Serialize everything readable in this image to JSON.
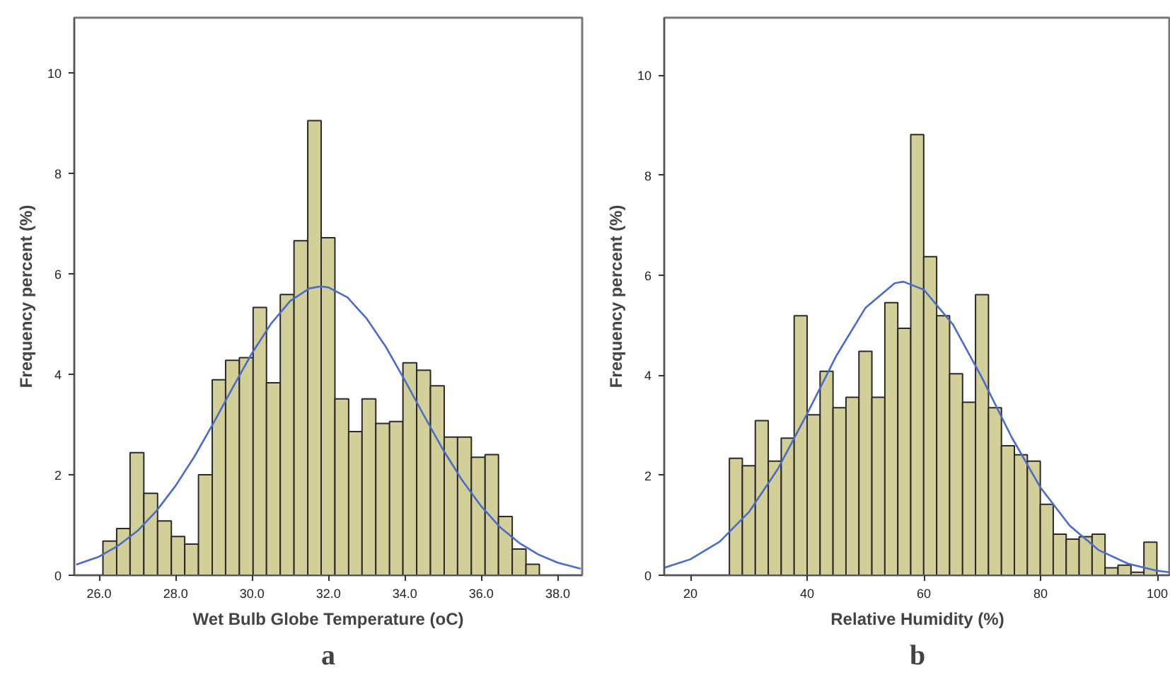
{
  "chart_data": [
    {
      "type": "histogram",
      "xlabel": "Wet Bulb Globe Temperature (oC)",
      "ylabel": "Frequency percent (%)",
      "annotations": [
        "a"
      ],
      "color": "#d3cf98",
      "bins": [
        26.1,
        26.46,
        26.81,
        27.17,
        27.53,
        27.89,
        28.24,
        28.6,
        28.96,
        29.31,
        29.67,
        30.03,
        30.38,
        30.74,
        31.1,
        31.46,
        31.81,
        32.17,
        32.53,
        32.88,
        33.24,
        33.6,
        33.95,
        34.31,
        34.67,
        35.03,
        35.38,
        35.74,
        36.1,
        36.45,
        36.81,
        37.17,
        37.52
      ],
      "values": [
        0.68,
        0.93,
        2.44,
        1.63,
        1.08,
        0.77,
        0.62,
        2.0,
        3.89,
        4.28,
        4.33,
        5.33,
        3.83,
        5.59,
        6.66,
        9.05,
        6.72,
        3.51,
        2.86,
        3.51,
        3.02,
        3.06,
        4.23,
        4.08,
        3.77,
        2.75,
        2.75,
        2.35,
        2.4,
        1.17,
        0.52,
        0.22
      ],
      "series": [
        {
          "type": "line",
          "color": "#4b6bc8",
          "x": [
            25.4,
            26,
            26.5,
            27,
            27.5,
            28,
            28.5,
            29,
            29.5,
            30,
            30.5,
            31,
            31.5,
            31.8,
            32,
            32.5,
            33,
            33.5,
            34,
            34.5,
            35,
            35.5,
            36,
            36.5,
            37,
            37.5,
            38,
            38.6
          ],
          "values": [
            0.21,
            0.37,
            0.59,
            0.88,
            1.28,
            1.78,
            2.37,
            3.04,
            3.74,
            4.42,
            5.01,
            5.46,
            5.71,
            5.75,
            5.73,
            5.53,
            5.11,
            4.55,
            3.88,
            3.18,
            2.5,
            1.89,
            1.37,
            0.95,
            0.64,
            0.41,
            0.25,
            0.13
          ]
        }
      ],
      "xlim": [
        25.35,
        38.64
      ],
      "ylim": [
        0,
        11.1
      ],
      "xticks": [
        {
          "value": 26,
          "label": "26.0"
        },
        {
          "value": 28,
          "label": "28.0"
        },
        {
          "value": 30,
          "label": "30.0"
        },
        {
          "value": 32,
          "label": "32.0"
        },
        {
          "value": 34,
          "label": "34.0"
        },
        {
          "value": 36,
          "label": "36.0"
        },
        {
          "value": 38,
          "label": "38.0"
        }
      ],
      "yticks": [
        0,
        2,
        4,
        6,
        8,
        10
      ],
      "grid": false
    },
    {
      "type": "histogram",
      "xlabel": "Relative Humidity (%)",
      "ylabel": "Frequency percent (%)",
      "annotations": [
        "b"
      ],
      "color": "#d3cf98",
      "bins": [
        26.67,
        28.89,
        31.11,
        33.33,
        35.55,
        37.77,
        39.99,
        42.21,
        44.43,
        46.65,
        48.87,
        51.09,
        53.31,
        55.53,
        57.75,
        59.97,
        62.19,
        64.41,
        66.63,
        68.85,
        71.07,
        73.29,
        75.51,
        77.73,
        79.95,
        82.17,
        84.39,
        86.61,
        88.83,
        91.05,
        93.27,
        95.49,
        97.71,
        99.93
      ],
      "values": [
        2.34,
        2.19,
        3.09,
        2.28,
        2.74,
        5.19,
        3.21,
        4.08,
        3.35,
        3.56,
        4.48,
        3.56,
        5.45,
        4.94,
        8.81,
        6.37,
        5.19,
        4.03,
        3.46,
        5.61,
        3.35,
        2.59,
        2.41,
        2.28,
        1.42,
        0.82,
        0.72,
        0.77,
        0.82,
        0.15,
        0.2,
        0.06,
        0.66
      ],
      "series": [
        {
          "type": "line",
          "color": "#4b6bc8",
          "x": [
            15.5,
            20,
            25,
            30,
            35,
            40,
            45,
            50,
            55,
            56.5,
            60,
            65,
            70,
            75,
            80,
            85,
            90,
            95,
            100,
            102
          ],
          "values": [
            0.15,
            0.32,
            0.67,
            1.26,
            2.13,
            3.23,
            4.39,
            5.35,
            5.84,
            5.87,
            5.71,
            5.01,
            3.94,
            2.77,
            1.75,
            0.99,
            0.5,
            0.23,
            0.09,
            0.06
          ]
        }
      ],
      "xlim": [
        15.5,
        102.3
      ],
      "ylim": [
        0,
        11.15
      ],
      "xticks": [
        20,
        40,
        60,
        80,
        100
      ],
      "yticks": [
        0,
        2,
        4,
        6,
        8,
        10
      ],
      "grid": false
    }
  ]
}
